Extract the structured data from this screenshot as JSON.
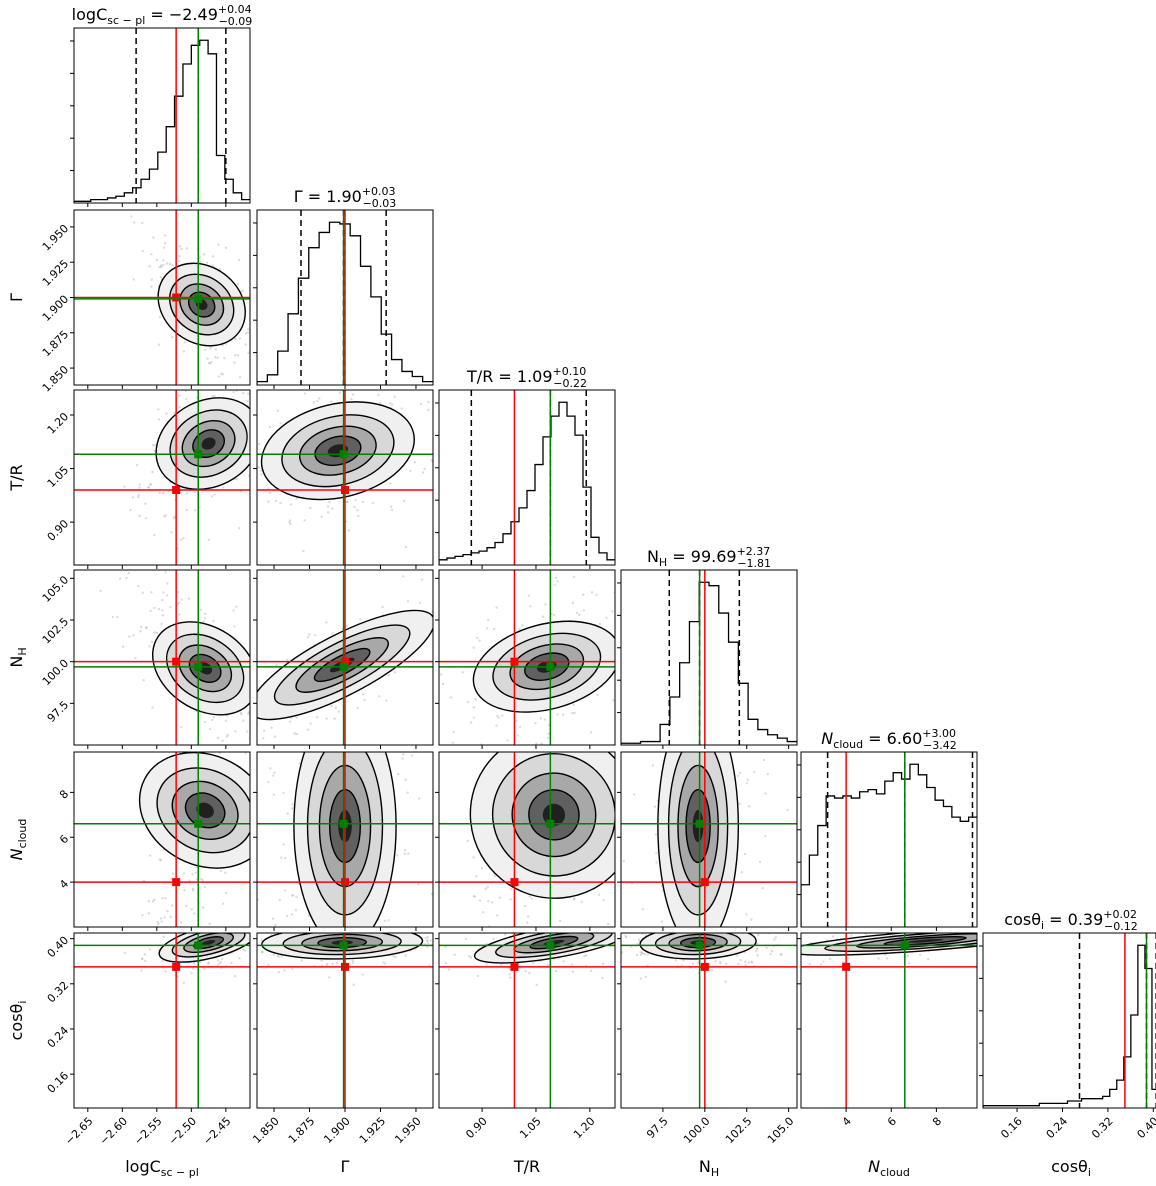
{
  "chart_data": {
    "type": "corner",
    "parameters": [
      {
        "key": "logC",
        "label": "logC",
        "label_sub": "sc − pl",
        "range": [
          -2.67,
          -2.415
        ],
        "ticks": [
          -2.65,
          -2.6,
          -2.55,
          -2.5,
          -2.45
        ],
        "tick_labels": [
          "−2.65",
          "−2.60",
          "−2.55",
          "−2.50",
          "−2.45"
        ],
        "title": {
          "prefix": "logC",
          "prefix_sub": "sc − pl",
          "value": " = −2.49",
          "plus": "+0.04",
          "minus": "−0.09"
        },
        "median": -2.49,
        "q_low": -2.58,
        "q_high": -2.45,
        "true_value": -2.522,
        "hist": [
          1,
          1,
          2,
          2,
          3,
          4,
          6,
          9,
          14,
          20,
          30,
          45,
          63,
          82,
          93,
          96,
          88,
          28,
          14,
          6,
          2
        ]
      },
      {
        "key": "Gamma",
        "label": "Γ",
        "label_sub": "",
        "range": [
          1.838,
          1.962
        ],
        "ticks": [
          1.85,
          1.875,
          1.9,
          1.925,
          1.95
        ],
        "tick_labels": [
          "1.850",
          "1.875",
          "1.900",
          "1.925",
          "1.950"
        ],
        "title": {
          "prefix": "Γ",
          "prefix_sub": "",
          "value": " = 1.90",
          "plus": "+0.03",
          "minus": "−0.03"
        },
        "median": 1.899,
        "q_low": 1.869,
        "q_high": 1.929,
        "true_value": 1.9,
        "hist": [
          2,
          6,
          20,
          42,
          63,
          81,
          90,
          96,
          95,
          88,
          70,
          52,
          30,
          15,
          8,
          5,
          2
        ]
      },
      {
        "key": "TR",
        "label": "T/R",
        "label_sub": "",
        "range": [
          0.78,
          1.27
        ],
        "ticks": [
          0.9,
          1.05,
          1.2
        ],
        "tick_labels": [
          "0.90",
          "1.05",
          "1.20"
        ],
        "title": {
          "prefix": "T/R",
          "prefix_sub": "",
          "value": " = 1.09",
          "plus": "+0.10",
          "minus": "−0.22"
        },
        "median": 1.09,
        "q_low": 0.87,
        "q_high": 1.19,
        "true_value": 0.99,
        "hist": [
          3,
          4,
          5,
          6,
          7,
          8,
          10,
          13,
          18,
          25,
          33,
          43,
          58,
          74,
          86,
          94,
          86,
          75,
          45,
          16,
          7,
          3
        ]
      },
      {
        "key": "NH",
        "label": "N",
        "label_sub": "H",
        "range": [
          95.0,
          105.5
        ],
        "ticks": [
          97.5,
          100.0,
          102.5,
          105.0
        ],
        "tick_labels": [
          "97.5",
          "100.0",
          "102.5",
          "105.0"
        ],
        "title": {
          "prefix": "N",
          "prefix_sub": "H",
          "value": " = 99.69",
          "plus": "+2.37",
          "minus": "−1.81"
        },
        "median": 99.69,
        "q_low": 97.88,
        "q_high": 102.06,
        "true_value": 100.0,
        "hist": [
          1,
          1,
          2,
          2,
          12,
          28,
          48,
          72,
          95,
          93,
          77,
          60,
          36,
          15,
          9,
          6,
          4,
          2
        ]
      },
      {
        "key": "Ncloud",
        "label": "N",
        "label_sub": "cloud",
        "italic": true,
        "range": [
          2.0,
          9.8
        ],
        "ticks": [
          4,
          6,
          8
        ],
        "tick_labels": [
          "4",
          "6",
          "8"
        ],
        "title": {
          "prefix": "N",
          "prefix_sub": "cloud",
          "value": " = 6.60",
          "plus": "+3.00",
          "minus": "−3.42"
        },
        "median": 6.6,
        "q_low": 3.18,
        "q_high": 9.6,
        "true_value": 4.0,
        "hist": [
          20,
          34,
          48,
          62,
          61,
          62,
          61,
          64,
          65,
          63,
          69,
          73,
          70,
          77,
          72,
          66,
          60,
          57,
          52,
          50,
          52
        ]
      },
      {
        "key": "cosi",
        "label": "cosθ",
        "label_sub": "i",
        "range": [
          0.1,
          0.41
        ],
        "ticks": [
          0.16,
          0.24,
          0.32,
          0.4
        ],
        "tick_labels": [
          "0.16",
          "0.24",
          "0.32",
          "0.40"
        ],
        "title": {
          "prefix": "cosθ",
          "prefix_sub": "i",
          "value": " = 0.39",
          "plus": "+0.02",
          "minus": "−0.12"
        },
        "median": 0.388,
        "q_low": 0.27,
        "q_high": 0.405,
        "true_value": 0.35,
        "hist": [
          1,
          1,
          1,
          1,
          1,
          1,
          1,
          1,
          2,
          2,
          2,
          2,
          3,
          3,
          4,
          4,
          4,
          5,
          8,
          12,
          22,
          40,
          70,
          60,
          8
        ]
      }
    ],
    "pair_panels": [
      {
        "row": 1,
        "col": 0,
        "peak": [
          -2.485,
          1.895
        ],
        "spread": [
          0.018,
          0.012
        ],
        "corr": -0.55
      },
      {
        "row": 2,
        "col": 0,
        "peak": [
          -2.475,
          1.12
        ],
        "spread": [
          0.022,
          0.05
        ],
        "corr": 0.45
      },
      {
        "row": 2,
        "col": 1,
        "peak": [
          1.895,
          1.1
        ],
        "spread": [
          0.016,
          0.05
        ],
        "corr": 0.3
      },
      {
        "row": 3,
        "col": 0,
        "peak": [
          -2.48,
          99.6
        ],
        "spread": [
          0.022,
          1.1
        ],
        "corr": -0.55
      },
      {
        "row": 3,
        "col": 1,
        "peak": [
          1.898,
          99.8
        ],
        "spread": [
          0.018,
          1.0
        ],
        "corr": 0.8
      },
      {
        "row": 3,
        "col": 2,
        "peak": [
          1.08,
          99.7
        ],
        "spread": [
          0.06,
          1.0
        ],
        "corr": 0.35
      },
      {
        "row": 4,
        "col": 0,
        "peak": [
          -2.48,
          7.2
        ],
        "spread": [
          0.02,
          1.6
        ],
        "corr": 0.75
      },
      {
        "row": 4,
        "col": 1,
        "peak": [
          1.9,
          6.5
        ],
        "spread": [
          0.012,
          1.8
        ],
        "corr": 0.0
      },
      {
        "row": 4,
        "col": 2,
        "peak": [
          1.1,
          7.0
        ],
        "spread": [
          0.06,
          1.8
        ],
        "corr": 0.65
      },
      {
        "row": 4,
        "col": 3,
        "peak": [
          99.6,
          6.5
        ],
        "spread": [
          0.8,
          1.8
        ],
        "corr": 0.0
      },
      {
        "row": 5,
        "col": 0,
        "peak": [
          -2.475,
          0.393
        ],
        "spread": [
          0.02,
          0.012
        ],
        "corr": 0.5
      },
      {
        "row": 5,
        "col": 1,
        "peak": [
          1.898,
          0.393
        ],
        "spread": [
          0.018,
          0.01
        ],
        "corr": 0.1
      },
      {
        "row": 5,
        "col": 2,
        "peak": [
          1.1,
          0.393
        ],
        "spread": [
          0.06,
          0.012
        ],
        "corr": 0.55
      },
      {
        "row": 5,
        "col": 3,
        "peak": [
          99.6,
          0.393
        ],
        "spread": [
          1.1,
          0.01
        ],
        "corr": 0.1
      },
      {
        "row": 5,
        "col": 4,
        "peak": [
          7.5,
          0.396
        ],
        "spread": [
          1.6,
          0.008
        ],
        "corr": 0.6
      }
    ],
    "colors": {
      "truth": "#ff0000",
      "median": "#008000",
      "hist": "#000000",
      "quantile": "#000000",
      "density": "#000000",
      "scatter": "#b0b0b0"
    },
    "grid": false
  }
}
